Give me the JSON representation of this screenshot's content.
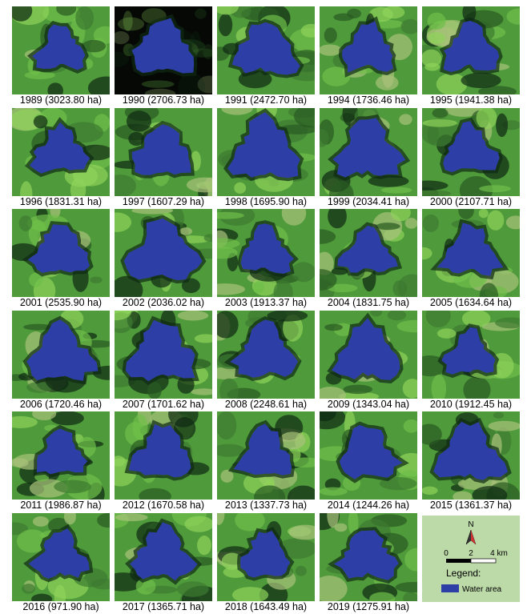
{
  "panels": [
    {
      "caption": "1989 (3023.80 ha)"
    },
    {
      "caption": "1990 (2706.73 ha)"
    },
    {
      "caption": "1991 (2472.70 ha)"
    },
    {
      "caption": "1994 (1736.46 ha)"
    },
    {
      "caption": "1995 (1941.38 ha)"
    },
    {
      "caption": "1996 (1831.31 ha)"
    },
    {
      "caption": "1997 (1607.29 ha)"
    },
    {
      "caption": "1998 (1695.90 ha)"
    },
    {
      "caption": "1999 (2034.41 ha)"
    },
    {
      "caption": "2000 (2107.71 ha)"
    },
    {
      "caption": "2001 (2535.90 ha)"
    },
    {
      "caption": "2002 (2036.02 ha)"
    },
    {
      "caption": "2003 (1913.37 ha)"
    },
    {
      "caption": "2004 (1831.75 ha)"
    },
    {
      "caption": "2005 (1634.64 ha)"
    },
    {
      "caption": "2006 (1720.46 ha)"
    },
    {
      "caption": "2007 (1701.62 ha)"
    },
    {
      "caption": "2008 (2248.61 ha)"
    },
    {
      "caption": "2009 (1343.04 ha)"
    },
    {
      "caption": "2010 (1912.45 ha)"
    },
    {
      "caption": "2011 (1986.87 ha)"
    },
    {
      "caption": "2012 (1670.58 ha)"
    },
    {
      "caption": "2013 (1337.73 ha)"
    },
    {
      "caption": "2014 (1244.26 ha)"
    },
    {
      "caption": "2015 (1361.37 ha)"
    },
    {
      "caption": "2016 (971.90 ha)"
    },
    {
      "caption": "2017 (1365.71 ha)"
    },
    {
      "caption": "2018 (1643.49 ha)"
    },
    {
      "caption": "2019 (1275.91 ha)"
    }
  ],
  "legend": {
    "north": "N",
    "scale_labels": [
      "0",
      "2",
      "4 km"
    ],
    "title": "Legend:",
    "item": "Water area"
  }
}
